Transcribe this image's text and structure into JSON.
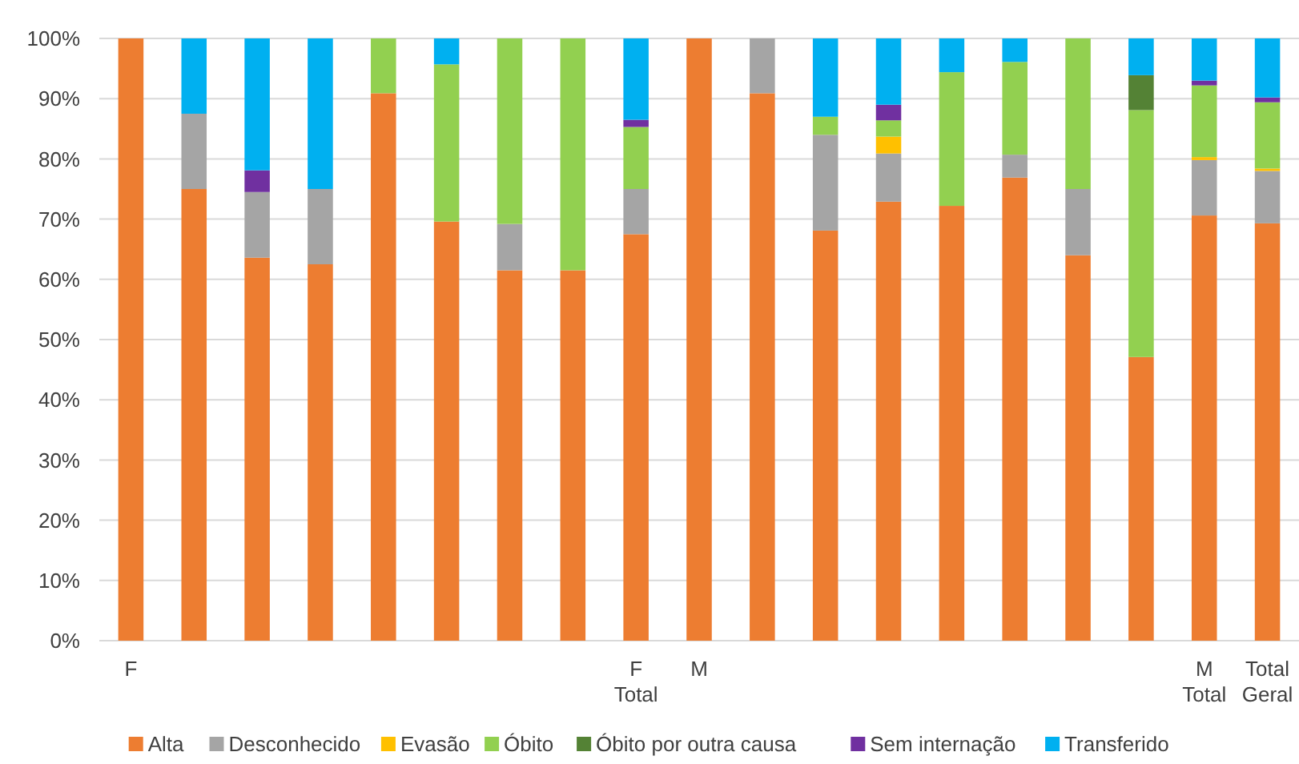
{
  "chart_data": {
    "type": "bar",
    "stacked": true,
    "categories": [
      "F",
      null,
      null,
      null,
      null,
      null,
      null,
      null,
      "F Total",
      "M",
      null,
      null,
      null,
      null,
      null,
      null,
      null,
      "M Total",
      "Total Geral"
    ],
    "series": [
      {
        "name": "Alta",
        "color": "#ed7d31",
        "values": [
          100,
          75,
          63.6,
          62.5,
          90.9,
          69.6,
          61.5,
          61.5,
          67.5,
          100,
          90.9,
          68.1,
          72.9,
          72.2,
          76.9,
          64,
          47.1,
          70.6,
          69.3
        ]
      },
      {
        "name": "Desconhecido",
        "color": "#a5a5a5",
        "values": [
          null,
          12.5,
          10.9,
          12.5,
          null,
          null,
          7.7,
          null,
          7.5,
          null,
          9.1,
          15.9,
          8,
          null,
          3.8,
          11,
          null,
          9.2,
          8.7
        ]
      },
      {
        "name": "Evasão",
        "color": "#ffc000",
        "values": [
          null,
          null,
          null,
          null,
          null,
          null,
          null,
          null,
          null,
          null,
          null,
          null,
          2.8,
          null,
          null,
          null,
          null,
          0.5,
          0.4
        ]
      },
      {
        "name": "Óbito",
        "color": "#92d050",
        "values": [
          null,
          null,
          null,
          null,
          9.1,
          26.1,
          30.8,
          38.5,
          10.3,
          null,
          null,
          3,
          2.7,
          22.2,
          15.4,
          25,
          41,
          11.9,
          11
        ]
      },
      {
        "name": "Óbito por outra causa",
        "color": "#548235",
        "values": [
          null,
          null,
          null,
          null,
          null,
          null,
          null,
          null,
          null,
          null,
          null,
          null,
          null,
          null,
          null,
          null,
          5.8,
          null,
          null
        ]
      },
      {
        "name": "Sem internação",
        "color": "#7030a0",
        "values": [
          null,
          null,
          3.6,
          null,
          null,
          null,
          null,
          null,
          1.2,
          null,
          null,
          null,
          2.6,
          null,
          null,
          null,
          null,
          0.8,
          0.8
        ]
      },
      {
        "name": "Transferido",
        "color": "#00b0f0",
        "values": [
          null,
          12.5,
          21.9,
          25,
          null,
          4.3,
          null,
          null,
          13.5,
          null,
          null,
          13,
          11,
          5.6,
          3.9,
          null,
          6.1,
          7,
          9.8
        ]
      }
    ],
    "ylim": [
      0,
      100
    ],
    "yticks": [
      {
        "value": 0,
        "label": "0%"
      },
      {
        "value": 10,
        "label": "10%"
      },
      {
        "value": 20,
        "label": "20%"
      },
      {
        "value": 30,
        "label": "30%"
      },
      {
        "value": 40,
        "label": "40%"
      },
      {
        "value": 50,
        "label": "50%"
      },
      {
        "value": 60,
        "label": "60%"
      },
      {
        "value": 70,
        "label": "70%"
      },
      {
        "value": 80,
        "label": "80%"
      },
      {
        "value": 90,
        "label": "90%"
      },
      {
        "value": 100,
        "label": "100%"
      }
    ],
    "grid": "y",
    "legend": "bottom"
  }
}
